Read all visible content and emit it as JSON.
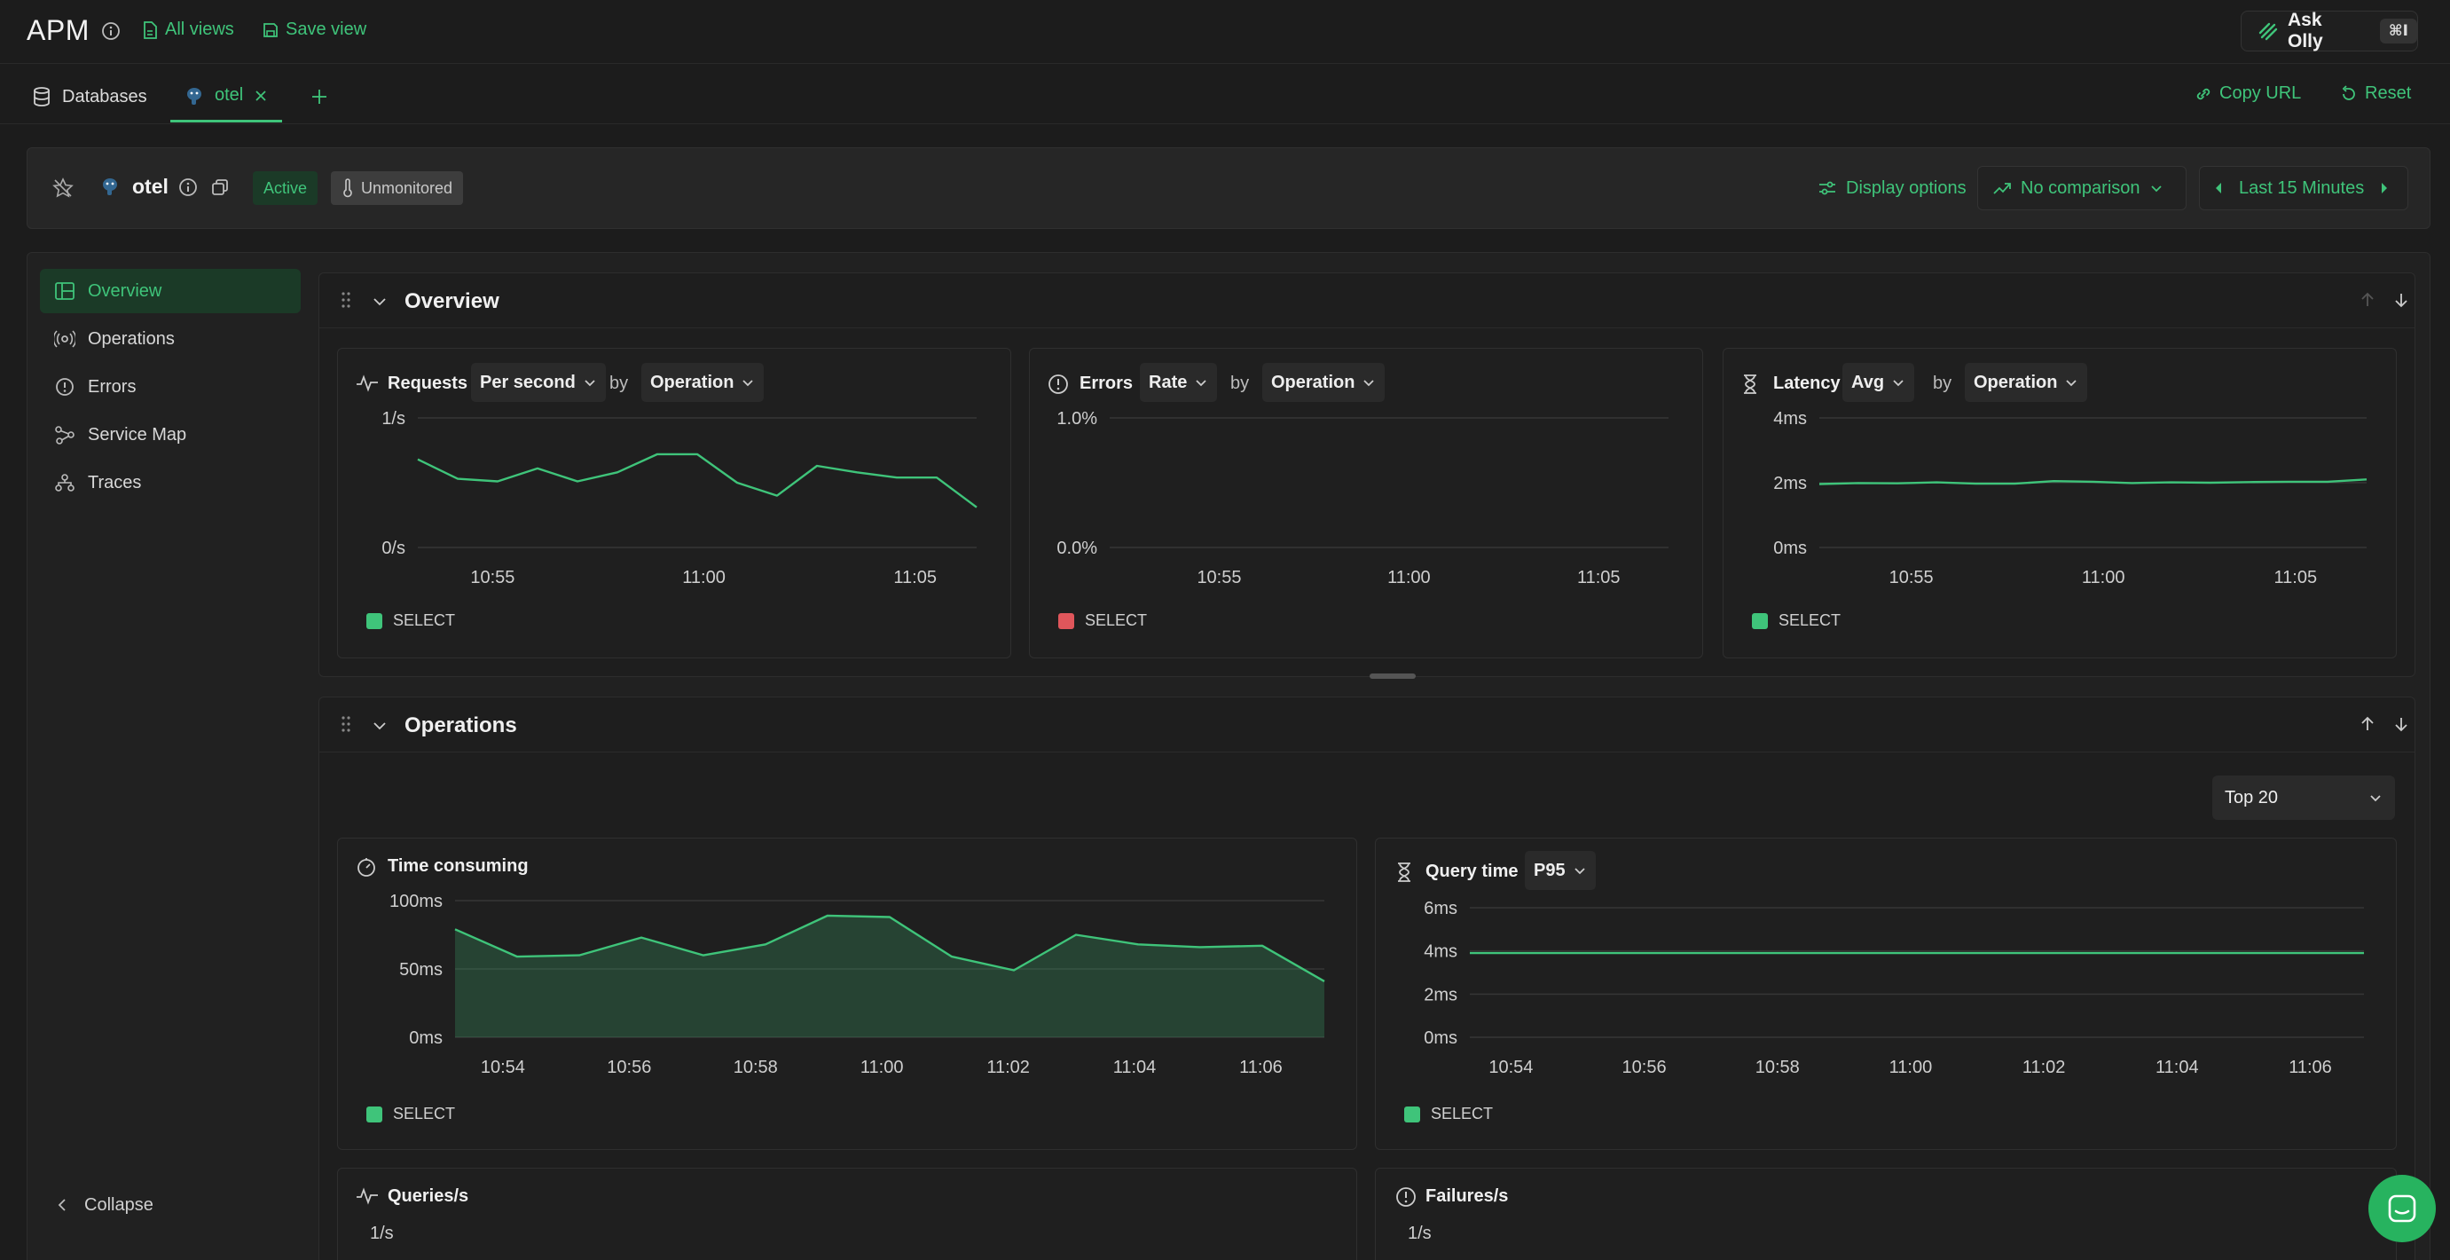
{
  "header": {
    "app_title": "APM",
    "all_views_label": "All views",
    "save_view_label": "Save view",
    "ask_olly_label": "Ask Olly",
    "ask_olly_shortcut": "⌘I"
  },
  "tabs": {
    "items": [
      {
        "label": "Databases"
      },
      {
        "label": "otel"
      }
    ],
    "copy_url_label": "Copy URL",
    "reset_label": "Reset"
  },
  "entity": {
    "name": "otel",
    "status_active": "Active",
    "status_monitor": "Unmonitored",
    "display_options_label": "Display options",
    "comparison_label": "No comparison",
    "time_range_label": "Last 15 Minutes"
  },
  "sidebar": {
    "items": [
      {
        "label": "Overview",
        "icon": "layout-icon"
      },
      {
        "label": "Operations",
        "icon": "broadcast-icon"
      },
      {
        "label": "Errors",
        "icon": "alert-circle-icon"
      },
      {
        "label": "Service Map",
        "icon": "network-icon"
      },
      {
        "label": "Traces",
        "icon": "traces-icon"
      }
    ],
    "collapse_label": "Collapse"
  },
  "overview": {
    "title": "Overview",
    "requests": {
      "title": "Requests",
      "metric": "Per second",
      "by": "by",
      "group": "Operation",
      "legend": "SELECT"
    },
    "errors": {
      "title": "Errors",
      "metric": "Rate",
      "by": "by",
      "group": "Operation",
      "legend": "SELECT"
    },
    "latency": {
      "title": "Latency",
      "metric": "Avg",
      "by": "by",
      "group": "Operation",
      "legend": "SELECT"
    }
  },
  "operations": {
    "title": "Operations",
    "top_select": "Top 20",
    "time_consuming": {
      "title": "Time consuming",
      "legend": "SELECT"
    },
    "query_time": {
      "title": "Query time",
      "metric": "P95",
      "legend": "SELECT"
    },
    "queries": {
      "title": "Queries/s",
      "y_top": "1/s"
    },
    "failures": {
      "title": "Failures/s",
      "y_top": "1/s"
    }
  },
  "colors": {
    "accent": "#3fc47a",
    "error": "#e0565b",
    "active_bg": "#1b3a27"
  },
  "chart_data": [
    {
      "type": "line",
      "title": "Requests",
      "x_ticks": [
        "10:55",
        "11:00",
        "11:05"
      ],
      "y_ticks": [
        "0/s",
        "1/s"
      ],
      "ylim": [
        0,
        1
      ],
      "series": [
        {
          "name": "SELECT",
          "color": "#3fc47a",
          "values": [
            0.68,
            0.53,
            0.51,
            0.61,
            0.51,
            0.58,
            0.72,
            0.72,
            0.5,
            0.4,
            0.63,
            0.58,
            0.54,
            0.54,
            0.31
          ]
        }
      ]
    },
    {
      "type": "line",
      "title": "Errors",
      "x_ticks": [
        "10:55",
        "11:00",
        "11:05"
      ],
      "y_ticks": [
        "0.0%",
        "1.0%"
      ],
      "ylim": [
        0,
        1
      ],
      "series": [
        {
          "name": "SELECT",
          "color": "#e0565b",
          "values": []
        }
      ]
    },
    {
      "type": "line",
      "title": "Latency",
      "x_ticks": [
        "10:55",
        "11:00",
        "11:05"
      ],
      "y_ticks": [
        "0ms",
        "2ms",
        "4ms"
      ],
      "ylim": [
        0,
        4
      ],
      "series": [
        {
          "name": "SELECT",
          "color": "#3fc47a",
          "values": [
            1.96,
            1.99,
            1.98,
            2.01,
            1.97,
            1.97,
            2.05,
            2.03,
            1.99,
            2.01,
            2.0,
            2.02,
            2.03,
            2.03,
            2.1
          ]
        }
      ]
    },
    {
      "type": "area",
      "title": "Time consuming",
      "x_ticks": [
        "10:54",
        "10:56",
        "10:58",
        "11:00",
        "11:02",
        "11:04",
        "11:06"
      ],
      "y_ticks": [
        "0ms",
        "50ms",
        "100ms"
      ],
      "ylim": [
        0,
        100
      ],
      "series": [
        {
          "name": "SELECT",
          "color": "#3fc47a",
          "values": [
            79,
            59,
            60,
            73,
            60,
            68,
            89,
            88,
            59,
            49,
            75,
            68,
            66,
            67,
            41
          ]
        }
      ]
    },
    {
      "type": "line",
      "title": "Query time",
      "x_ticks": [
        "10:54",
        "10:56",
        "10:58",
        "11:00",
        "11:02",
        "11:04",
        "11:06"
      ],
      "y_ticks": [
        "0ms",
        "2ms",
        "4ms",
        "6ms"
      ],
      "ylim": [
        0,
        6
      ],
      "series": [
        {
          "name": "SELECT",
          "color": "#3fc47a",
          "values": [
            3.9,
            3.9,
            3.9,
            3.9,
            3.9,
            3.9,
            3.9,
            3.9,
            3.9,
            3.9,
            3.9,
            3.9,
            3.9,
            3.9,
            3.9
          ]
        }
      ]
    }
  ]
}
